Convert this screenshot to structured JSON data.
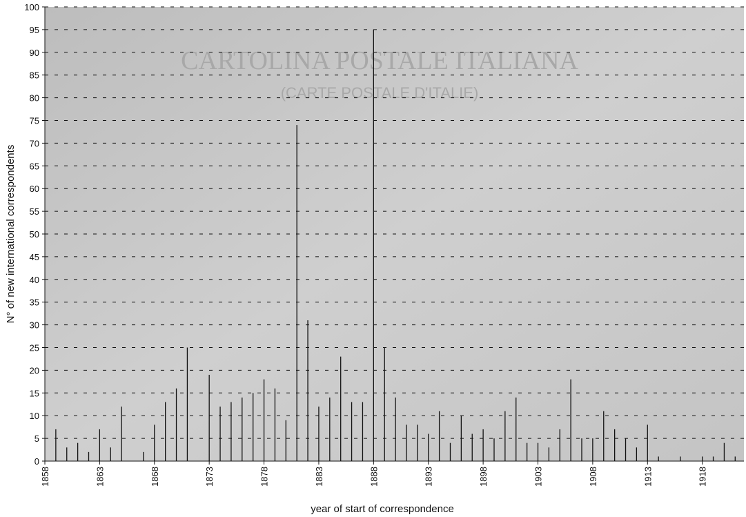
{
  "chart_data": {
    "type": "needle",
    "background_text": [
      "CARTOLINA POSTALE ITALIANA",
      "(CARTE POSTALE D'ITALIE)"
    ],
    "x_label": "year of start of correspondence",
    "y_label": "N° of new international correspondents",
    "x": [
      1859,
      1860,
      1861,
      1862,
      1863,
      1864,
      1865,
      1867,
      1868,
      1869,
      1870,
      1871,
      1873,
      1874,
      1875,
      1876,
      1877,
      1878,
      1879,
      1880,
      1881,
      1882,
      1883,
      1884,
      1885,
      1886,
      1887,
      1888,
      1889,
      1890,
      1891,
      1892,
      1893,
      1894,
      1895,
      1896,
      1897,
      1898,
      1899,
      1900,
      1901,
      1902,
      1903,
      1904,
      1905,
      1906,
      1907,
      1908,
      1909,
      1910,
      1911,
      1912,
      1913,
      1914,
      1916,
      1918,
      1919,
      1920,
      1921
    ],
    "values": [
      7,
      3,
      4,
      2,
      7,
      3,
      12,
      2,
      8,
      13,
      16,
      25,
      19,
      12,
      13,
      14,
      15,
      18,
      16,
      9,
      74,
      31,
      12,
      14,
      23,
      13,
      13,
      95,
      25,
      14,
      8,
      8,
      6,
      11,
      4,
      10,
      6,
      7,
      5,
      11,
      14,
      4,
      4,
      3,
      7,
      18,
      5,
      5,
      11,
      7,
      5,
      3,
      8,
      1,
      1,
      1,
      1,
      4,
      1
    ],
    "color": "#111111",
    "xlim": [
      1858,
      1921.8
    ],
    "xticks": [
      1858,
      1863,
      1868,
      1873,
      1878,
      1883,
      1888,
      1893,
      1898,
      1903,
      1908,
      1913,
      1918
    ],
    "ylim": [
      0,
      100
    ],
    "yticks": [
      0,
      5,
      10,
      15,
      20,
      25,
      30,
      35,
      40,
      45,
      50,
      55,
      60,
      65,
      70,
      75,
      80,
      85,
      90,
      95,
      100
    ],
    "grid": true
  }
}
